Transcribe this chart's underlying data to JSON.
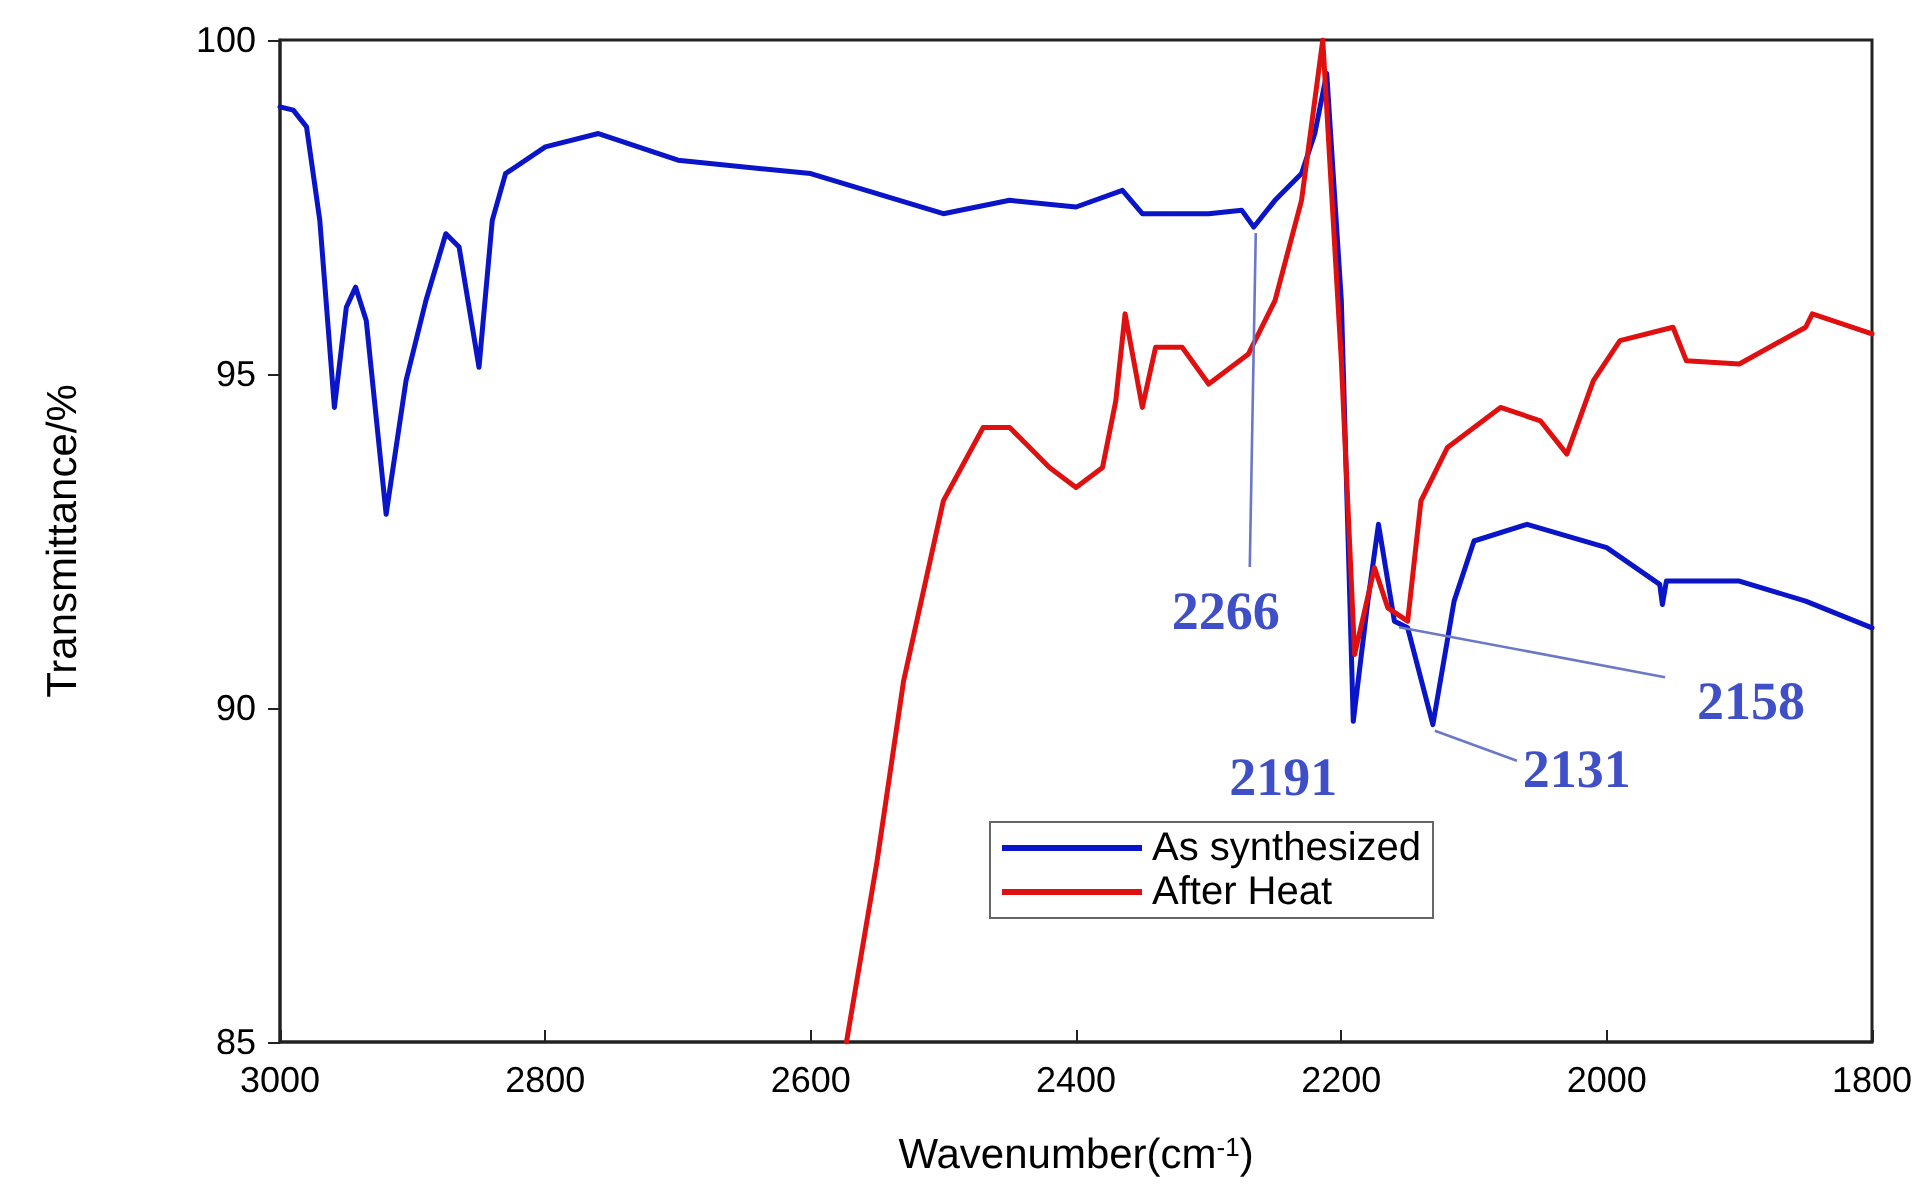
{
  "chart_data": {
    "type": "line",
    "xlabel": "Wavenumber(cm$^{-1}$)",
    "ylabel": "Transmittance/%",
    "xlim": [
      3000,
      1800
    ],
    "xticks": [
      3000,
      2800,
      2600,
      2400,
      2200,
      2000,
      1800
    ],
    "ylim": [
      85,
      100
    ],
    "yticks": [
      85,
      90,
      95,
      100
    ],
    "grid": false,
    "legend": "bottom",
    "marker": "none",
    "line_style": "solid",
    "series": [
      {
        "name": "As synthesized",
        "color": "#0a14c8",
        "x": [
          3000,
          2990,
          2980,
          2970,
          2959,
          2950,
          2943,
          2935,
          2920,
          2905,
          2890,
          2875,
          2865,
          2850,
          2840,
          2830,
          2800,
          2760,
          2700,
          2600,
          2500,
          2450,
          2400,
          2365,
          2350,
          2300,
          2275,
          2266,
          2250,
          2230,
          2220,
          2211,
          2200,
          2191,
          2180,
          2172,
          2160,
          2150,
          2131,
          2115,
          2100,
          2060,
          2000,
          1960,
          1958,
          1955,
          1900,
          1850,
          1800
        ],
        "values": [
          99.0,
          98.95,
          98.7,
          97.3,
          94.5,
          96.0,
          96.3,
          95.8,
          92.9,
          94.9,
          96.1,
          97.1,
          96.9,
          95.1,
          97.3,
          98.0,
          98.4,
          98.6,
          98.2,
          98.0,
          97.4,
          97.6,
          97.5,
          97.75,
          97.4,
          97.4,
          97.45,
          97.2,
          97.6,
          98.0,
          98.6,
          99.5,
          96.1,
          89.8,
          91.6,
          92.75,
          91.3,
          91.2,
          89.75,
          91.6,
          92.5,
          92.75,
          92.4,
          91.85,
          91.55,
          91.9,
          91.9,
          91.6,
          91.2
        ]
      },
      {
        "name": "After Heat",
        "color": "#e01010",
        "x": [
          2573,
          2550,
          2530,
          2500,
          2470,
          2450,
          2420,
          2400,
          2380,
          2370,
          2363,
          2350,
          2340,
          2320,
          2300,
          2270,
          2250,
          2230,
          2214,
          2200,
          2190,
          2175,
          2165,
          2150,
          2140,
          2120,
          2080,
          2050,
          2030,
          2010,
          1990,
          1950,
          1940,
          1900,
          1850,
          1845,
          1800
        ],
        "values": [
          85.0,
          87.7,
          90.4,
          93.1,
          94.2,
          94.2,
          93.6,
          93.3,
          93.6,
          94.6,
          95.9,
          94.5,
          95.4,
          95.4,
          94.85,
          95.3,
          96.1,
          97.6,
          100.0,
          95.2,
          90.8,
          92.1,
          91.5,
          91.3,
          93.1,
          93.9,
          94.5,
          94.3,
          93.8,
          94.9,
          95.5,
          95.7,
          95.2,
          95.15,
          95.7,
          95.9,
          95.6
        ]
      }
    ],
    "annotations": [
      {
        "text": "2266",
        "x": 2266,
        "y": 97.2
      },
      {
        "text": "2191",
        "x": 2191,
        "y": 89.8
      },
      {
        "text": "2131",
        "x": 2131,
        "y": 89.75
      },
      {
        "text": "2158",
        "x": 2158,
        "y": 91.3
      }
    ]
  }
}
